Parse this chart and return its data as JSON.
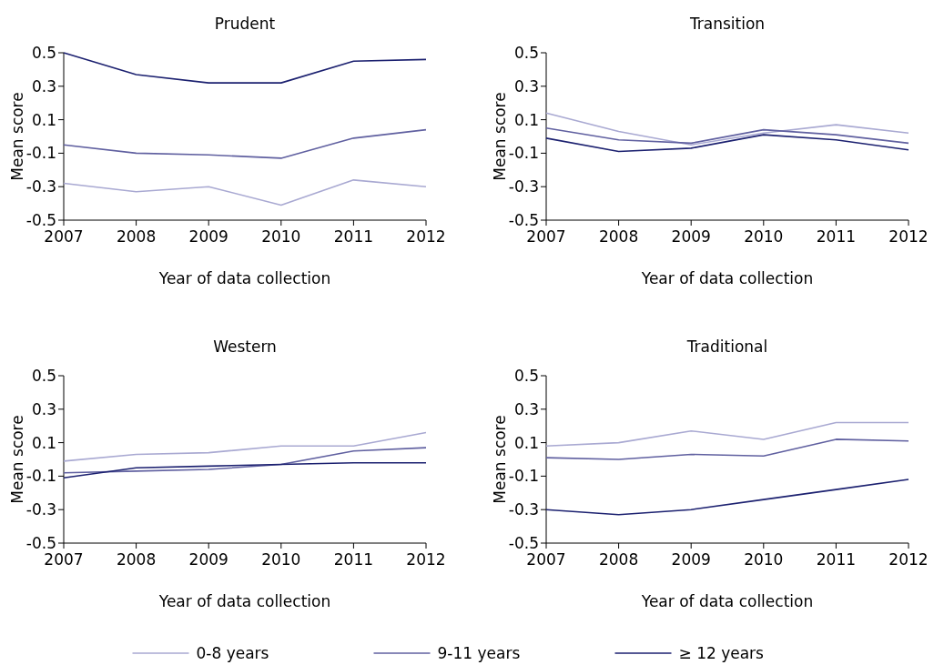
{
  "chart_data": [
    {
      "type": "line",
      "title": "Prudent",
      "xlabel": "Year of data collection",
      "ylabel": "Mean score",
      "x": [
        2007,
        2008,
        2009,
        2010,
        2011,
        2012
      ],
      "xlim": [
        2007,
        2012
      ],
      "xticks": [
        2007,
        2008,
        2009,
        2010,
        2011,
        2012
      ],
      "ylim": [
        -0.5,
        0.5
      ],
      "yticks": [
        -0.5,
        -0.3,
        -0.1,
        0.1,
        0.3,
        0.5
      ],
      "grid": false,
      "legend": "bottom",
      "series": [
        {
          "name": "0-8 years",
          "color": "#a9a9d2",
          "values": [
            -0.28,
            -0.33,
            -0.3,
            -0.41,
            -0.26,
            -0.3
          ]
        },
        {
          "name": "9-11 years",
          "color": "#6060a0",
          "values": [
            -0.05,
            -0.1,
            -0.11,
            -0.13,
            -0.01,
            0.04
          ]
        },
        {
          "name": "≥ 12 years",
          "color": "#1c2170",
          "values": [
            0.5,
            0.37,
            0.32,
            0.32,
            0.45,
            0.46
          ]
        }
      ]
    },
    {
      "type": "line",
      "title": "Transition",
      "xlabel": "Year of data collection",
      "ylabel": "Mean score",
      "x": [
        2007,
        2008,
        2009,
        2010,
        2011,
        2012
      ],
      "xlim": [
        2007,
        2012
      ],
      "xticks": [
        2007,
        2008,
        2009,
        2010,
        2011,
        2012
      ],
      "ylim": [
        -0.5,
        0.5
      ],
      "yticks": [
        -0.5,
        -0.3,
        -0.1,
        0.1,
        0.3,
        0.5
      ],
      "grid": false,
      "series": [
        {
          "color": "#a9a9d2",
          "values": [
            0.14,
            0.03,
            -0.05,
            0.02,
            0.07,
            0.02
          ]
        },
        {
          "color": "#6060a0",
          "values": [
            0.05,
            -0.02,
            -0.04,
            0.04,
            0.01,
            -0.04
          ]
        },
        {
          "color": "#1c2170",
          "values": [
            -0.01,
            -0.09,
            -0.07,
            0.01,
            -0.02,
            -0.08
          ]
        }
      ]
    },
    {
      "type": "line",
      "title": "Western",
      "xlabel": "Year of data collection",
      "ylabel": "Mean score",
      "x": [
        2007,
        2008,
        2009,
        2010,
        2011,
        2012
      ],
      "xlim": [
        2007,
        2012
      ],
      "xticks": [
        2007,
        2008,
        2009,
        2010,
        2011,
        2012
      ],
      "ylim": [
        -0.5,
        0.5
      ],
      "yticks": [
        -0.5,
        -0.3,
        -0.1,
        0.1,
        0.3,
        0.5
      ],
      "grid": false,
      "series": [
        {
          "color": "#a9a9d2",
          "values": [
            -0.01,
            0.03,
            0.04,
            0.08,
            0.08,
            0.16
          ]
        },
        {
          "color": "#6060a0",
          "values": [
            -0.08,
            -0.07,
            -0.06,
            -0.03,
            0.05,
            0.07
          ]
        },
        {
          "color": "#1c2170",
          "values": [
            -0.11,
            -0.05,
            -0.04,
            -0.03,
            -0.02,
            -0.02
          ]
        }
      ]
    },
    {
      "type": "line",
      "title": "Traditional",
      "xlabel": "Year of data collection",
      "ylabel": "Mean score",
      "x": [
        2007,
        2008,
        2009,
        2010,
        2011,
        2012
      ],
      "xlim": [
        2007,
        2012
      ],
      "xticks": [
        2007,
        2008,
        2009,
        2010,
        2011,
        2012
      ],
      "ylim": [
        -0.5,
        0.5
      ],
      "yticks": [
        -0.5,
        -0.3,
        -0.1,
        0.1,
        0.3,
        0.5
      ],
      "grid": false,
      "series": [
        {
          "color": "#a9a9d2",
          "values": [
            0.08,
            0.1,
            0.17,
            0.12,
            0.22,
            0.22
          ]
        },
        {
          "color": "#6060a0",
          "values": [
            0.01,
            0.0,
            0.03,
            0.02,
            0.12,
            0.11
          ]
        },
        {
          "color": "#1c2170",
          "values": [
            -0.3,
            -0.33,
            -0.3,
            -0.24,
            -0.18,
            -0.12
          ]
        }
      ]
    }
  ]
}
